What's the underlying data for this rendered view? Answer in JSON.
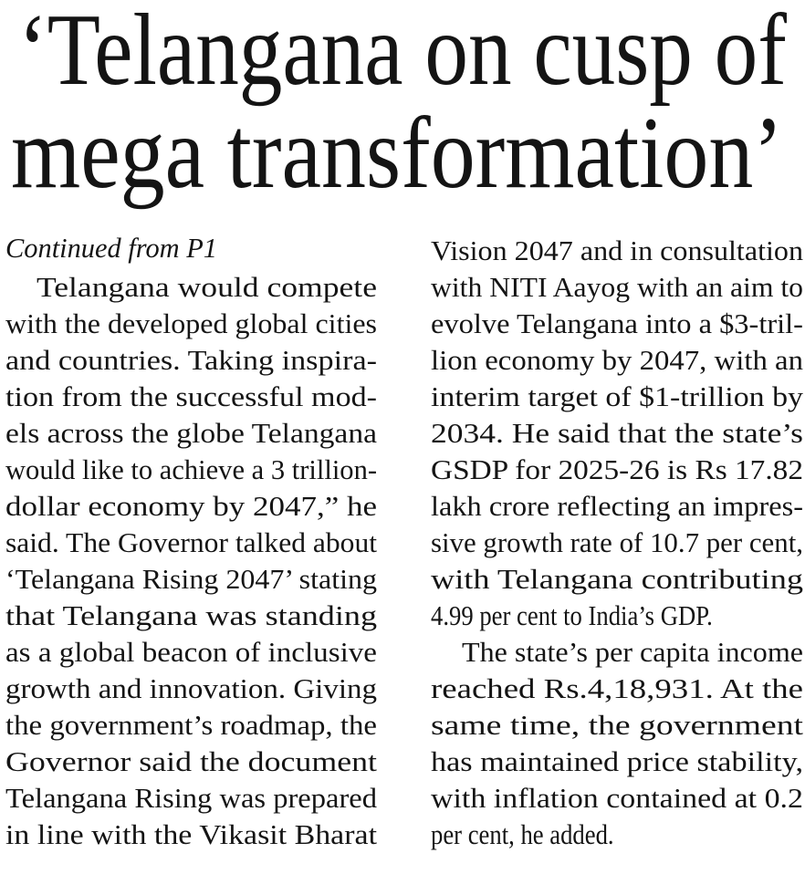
{
  "headline": [
    "‘Telangana on cusp of",
    "mega transformation’"
  ],
  "continued": "Continued from P1",
  "columns": [
    [
      "Telangana would compete",
      "with the developed global cities",
      "and countries. Taking inspira-",
      "tion from the successful mod-",
      "els across the globe Telangana",
      "would like to achieve a 3 trillion-",
      "dollar economy by 2047,” he",
      "said. The Governor talked about",
      "‘Telangana Rising 2047’ stating",
      "that Telangana was standing",
      "as a global beacon of inclusive",
      "growth and innovation. Giving",
      "the government’s roadmap, the",
      "Governor said the document",
      "Telangana Rising was prepared",
      "in line with the Vikasit Bharat"
    ],
    [
      "Vision 2047 and in consultation",
      "with NITI Aayog with an aim to",
      "evolve Telangana into a $3-tril-",
      "lion economy by 2047, with an",
      "interim target of $1-trillion by",
      "2034. He said that the state’s",
      "GSDP for 2025-26 is Rs 17.82",
      "lakh crore reflecting an impres-",
      "sive growth rate of 10.7 per cent,",
      "with Telangana contributing",
      "4.99 per cent to India’s GDP.",
      "The state’s per capita income",
      "reached Rs.4,18,931. At the",
      "same time, the government",
      "has maintained price stability,",
      "with inflation contained at 0.2",
      "per cent, he added."
    ]
  ]
}
